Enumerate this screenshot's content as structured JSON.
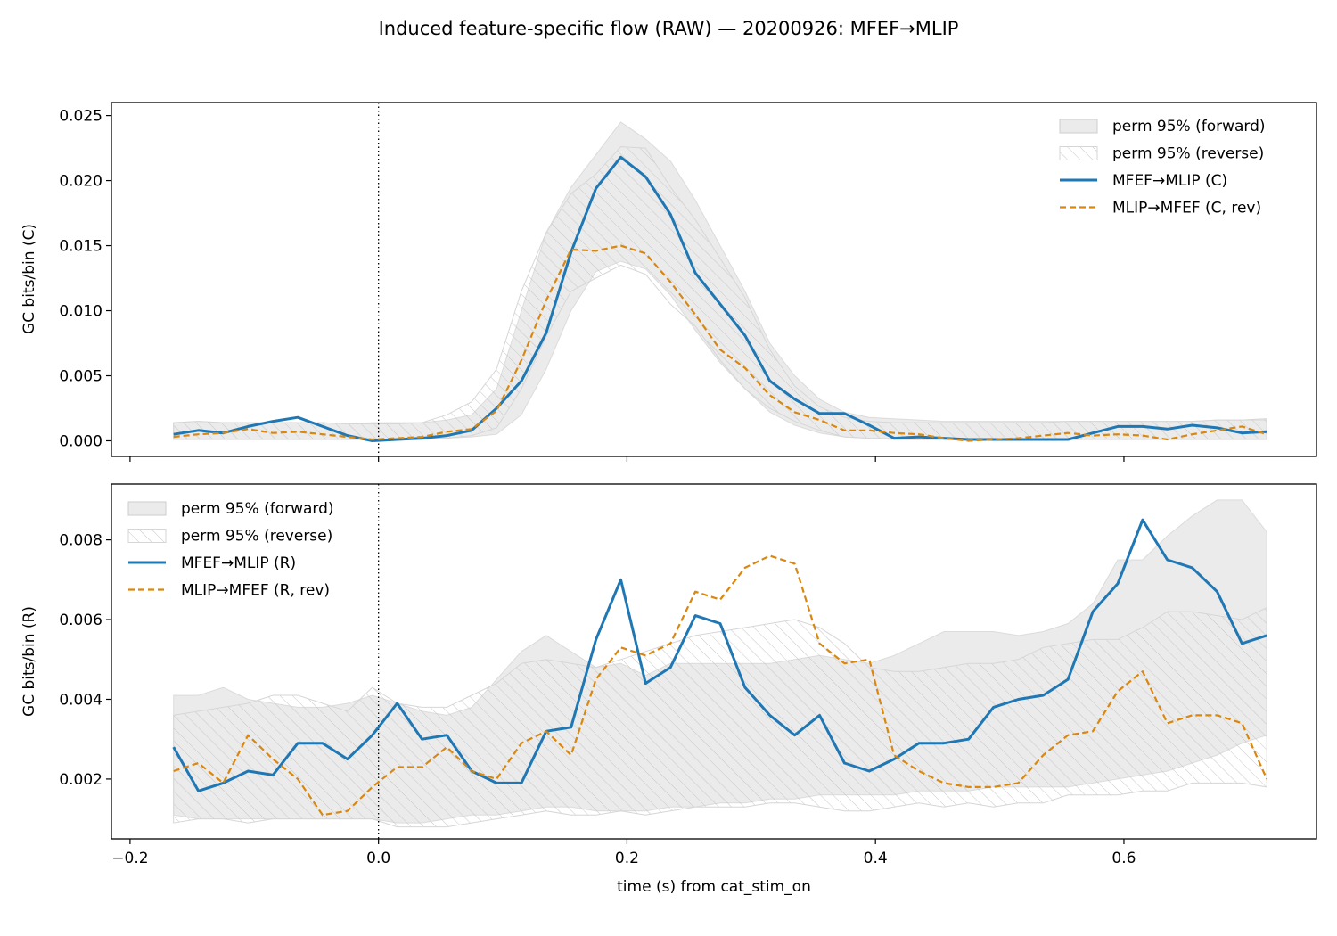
{
  "figure": {
    "title": "Induced feature-specific flow (RAW) — 20200926: MFEF→MLIP"
  },
  "colors": {
    "forward": "#1f77b4",
    "reverse": "#d9870f",
    "band": "#cccccc",
    "hatch": "#c8c8c8"
  },
  "chart_data": [
    {
      "type": "line",
      "panel": "top",
      "ylabel": "GC bits/bin (C)",
      "xlabel": "",
      "xlim": [
        -0.215,
        0.755
      ],
      "ylim": [
        -0.0012,
        0.026
      ],
      "xticks": [
        -0.2,
        0.0,
        0.2,
        0.4,
        0.6
      ],
      "xticklabels": [
        "",
        "",
        "",
        "",
        ""
      ],
      "yticks": [
        0.0,
        0.005,
        0.01,
        0.015,
        0.02,
        0.025
      ],
      "yticklabels": [
        "0.000",
        "0.005",
        "0.010",
        "0.015",
        "0.020",
        "0.025"
      ],
      "vline_x": 0.0,
      "legend_position": "upper right",
      "legend": [
        {
          "label": "perm 95% (forward)",
          "kind": "fill"
        },
        {
          "label": "perm 95% (reverse)",
          "kind": "hatch"
        },
        {
          "label": "MFEF→MLIP (C)",
          "kind": "solid"
        },
        {
          "label": "MLIP→MFEF (C, rev)",
          "kind": "dashed"
        }
      ],
      "x": [
        -0.165,
        -0.145,
        -0.125,
        -0.105,
        -0.085,
        -0.065,
        -0.045,
        -0.025,
        -0.005,
        0.015,
        0.035,
        0.055,
        0.075,
        0.095,
        0.115,
        0.135,
        0.155,
        0.175,
        0.195,
        0.215,
        0.235,
        0.255,
        0.275,
        0.295,
        0.315,
        0.335,
        0.355,
        0.375,
        0.395,
        0.415,
        0.435,
        0.455,
        0.475,
        0.495,
        0.515,
        0.535,
        0.555,
        0.575,
        0.595,
        0.615,
        0.635,
        0.655,
        0.675,
        0.695,
        0.715
      ],
      "series": [
        {
          "name": "MFEF→MLIP (C)",
          "style": "solid",
          "values": [
            0.0005,
            0.0008,
            0.0006,
            0.0011,
            0.0015,
            0.0018,
            0.0011,
            0.0004,
            0.0,
            0.0001,
            0.0002,
            0.0004,
            0.0008,
            0.0025,
            0.0046,
            0.0083,
            0.0145,
            0.0194,
            0.0218,
            0.0203,
            0.0174,
            0.0129,
            0.0105,
            0.0081,
            0.0046,
            0.0032,
            0.0021,
            0.0021,
            0.0012,
            0.0002,
            0.0003,
            0.0002,
            0.0001,
            0.0001,
            0.0001,
            0.0001,
            0.0001,
            0.0006,
            0.0011,
            0.0011,
            0.0009,
            0.0012,
            0.001,
            0.0006,
            0.0007
          ]
        },
        {
          "name": "MLIP→MFEF (C, rev)",
          "style": "dashed",
          "values": [
            0.0003,
            0.0005,
            0.0006,
            0.0009,
            0.0006,
            0.0007,
            0.0005,
            0.0003,
            0.0001,
            0.0002,
            0.0003,
            0.0007,
            0.0009,
            0.0023,
            0.0062,
            0.0108,
            0.0147,
            0.0146,
            0.015,
            0.0144,
            0.0122,
            0.0097,
            0.007,
            0.0056,
            0.0035,
            0.0022,
            0.0016,
            0.0008,
            0.0008,
            0.0006,
            0.0005,
            0.0002,
            0.0,
            0.0001,
            0.0002,
            0.0004,
            0.0006,
            0.0004,
            0.0005,
            0.0004,
            0.0001,
            0.0005,
            0.0008,
            0.0011,
            0.0005
          ]
        }
      ],
      "bands": {
        "forward": {
          "lower": [
            0.0001,
            0.0001,
            0.0001,
            0.0001,
            0.0001,
            0.0001,
            0.0001,
            0.0001,
            0.0001,
            0.0001,
            0.0002,
            0.0002,
            0.0003,
            0.0005,
            0.002,
            0.0055,
            0.01,
            0.013,
            0.0138,
            0.0132,
            0.0112,
            0.0085,
            0.006,
            0.004,
            0.0022,
            0.0012,
            0.0006,
            0.0003,
            0.0002,
            0.0002,
            0.0002,
            0.0001,
            0.0001,
            0.0001,
            0.0001,
            0.0001,
            0.0001,
            0.0001,
            0.0001,
            0.0001,
            0.0001,
            0.0001,
            0.0001,
            0.0001,
            0.0001
          ],
          "upper": [
            0.0014,
            0.0015,
            0.0014,
            0.0014,
            0.0014,
            0.0014,
            0.0014,
            0.0013,
            0.0014,
            0.0014,
            0.0014,
            0.0016,
            0.002,
            0.004,
            0.01,
            0.016,
            0.0195,
            0.022,
            0.0245,
            0.0232,
            0.0215,
            0.0185,
            0.015,
            0.0115,
            0.0075,
            0.005,
            0.0032,
            0.0022,
            0.0018,
            0.0017,
            0.0016,
            0.0015,
            0.0015,
            0.0015,
            0.0015,
            0.0015,
            0.0015,
            0.0015,
            0.0015,
            0.0015,
            0.0015,
            0.0015,
            0.0016,
            0.0016,
            0.0016
          ]
        },
        "reverse": {
          "lower": [
            0.0001,
            0.0001,
            0.0001,
            0.0001,
            0.0001,
            0.0001,
            0.0001,
            0.0001,
            0.0001,
            0.0001,
            0.0001,
            0.0002,
            0.0004,
            0.001,
            0.004,
            0.008,
            0.0115,
            0.0125,
            0.0135,
            0.0128,
            0.0105,
            0.0088,
            0.0062,
            0.004,
            0.0025,
            0.0015,
            0.0008,
            0.0003,
            0.0002,
            0.0001,
            0.0001,
            0.0001,
            0.0001,
            0.0001,
            0.0001,
            0.0001,
            0.0001,
            0.0001,
            0.0001,
            0.0001,
            0.0001,
            0.0001,
            0.0001,
            0.0001,
            0.0001
          ],
          "upper": [
            0.0014,
            0.0015,
            0.0014,
            0.0014,
            0.0014,
            0.0014,
            0.0014,
            0.0013,
            0.0013,
            0.0013,
            0.0014,
            0.002,
            0.003,
            0.0055,
            0.0115,
            0.016,
            0.019,
            0.0205,
            0.0226,
            0.0225,
            0.0195,
            0.017,
            0.014,
            0.011,
            0.007,
            0.0042,
            0.0026,
            0.0018,
            0.0015,
            0.0014,
            0.0014,
            0.0014,
            0.0014,
            0.0014,
            0.0014,
            0.0014,
            0.0015,
            0.0015,
            0.0015,
            0.0015,
            0.0015,
            0.0015,
            0.0016,
            0.0016,
            0.0017
          ]
        }
      }
    },
    {
      "type": "line",
      "panel": "bottom",
      "ylabel": "GC bits/bin (R)",
      "xlabel": "time (s) from cat_stim_on",
      "xlim": [
        -0.215,
        0.755
      ],
      "ylim": [
        0.0005,
        0.0094
      ],
      "xticks": [
        -0.2,
        0.0,
        0.2,
        0.4,
        0.6
      ],
      "xticklabels": [
        "−0.2",
        "0.0",
        "0.2",
        "0.4",
        "0.6"
      ],
      "yticks": [
        0.002,
        0.004,
        0.006,
        0.008
      ],
      "yticklabels": [
        "0.002",
        "0.004",
        "0.006",
        "0.008"
      ],
      "vline_x": 0.0,
      "legend_position": "upper left",
      "legend": [
        {
          "label": "perm 95% (forward)",
          "kind": "fill"
        },
        {
          "label": "perm 95% (reverse)",
          "kind": "hatch"
        },
        {
          "label": "MFEF→MLIP (R)",
          "kind": "solid"
        },
        {
          "label": "MLIP→MFEF (R, rev)",
          "kind": "dashed"
        }
      ],
      "x": [
        -0.165,
        -0.145,
        -0.125,
        -0.105,
        -0.085,
        -0.065,
        -0.045,
        -0.025,
        -0.005,
        0.015,
        0.035,
        0.055,
        0.075,
        0.095,
        0.115,
        0.135,
        0.155,
        0.175,
        0.195,
        0.215,
        0.235,
        0.255,
        0.275,
        0.295,
        0.315,
        0.335,
        0.355,
        0.375,
        0.395,
        0.415,
        0.435,
        0.455,
        0.475,
        0.495,
        0.515,
        0.535,
        0.555,
        0.575,
        0.595,
        0.615,
        0.635,
        0.655,
        0.675,
        0.695,
        0.715
      ],
      "series": [
        {
          "name": "MFEF→MLIP (R)",
          "style": "solid",
          "values": [
            0.0028,
            0.0017,
            0.0019,
            0.0022,
            0.0021,
            0.0029,
            0.0029,
            0.0025,
            0.0031,
            0.0039,
            0.003,
            0.0031,
            0.0022,
            0.0019,
            0.0019,
            0.0032,
            0.0033,
            0.0055,
            0.007,
            0.0044,
            0.0048,
            0.0061,
            0.0059,
            0.0043,
            0.0036,
            0.0031,
            0.0036,
            0.0024,
            0.0022,
            0.0025,
            0.0029,
            0.0029,
            0.003,
            0.0038,
            0.004,
            0.0041,
            0.0045,
            0.0062,
            0.0069,
            0.0085,
            0.0075,
            0.0073,
            0.0067,
            0.0054,
            0.0056
          ]
        },
        {
          "name": "MLIP→MFEF (R, rev)",
          "style": "dashed",
          "values": [
            0.0022,
            0.0024,
            0.0019,
            0.0031,
            0.0025,
            0.002,
            0.0011,
            0.0012,
            0.0018,
            0.0023,
            0.0023,
            0.0028,
            0.0022,
            0.002,
            0.0029,
            0.0032,
            0.0026,
            0.0045,
            0.0053,
            0.0051,
            0.0054,
            0.0067,
            0.0065,
            0.0073,
            0.0076,
            0.0074,
            0.0054,
            0.0049,
            0.005,
            0.0026,
            0.0022,
            0.0019,
            0.0018,
            0.0018,
            0.0019,
            0.0026,
            0.0031,
            0.0032,
            0.0042,
            0.0047,
            0.0034,
            0.0036,
            0.0036,
            0.0034,
            0.002
          ]
        }
      ],
      "bands": {
        "forward": {
          "lower": [
            0.0011,
            0.001,
            0.001,
            0.001,
            0.001,
            0.001,
            0.001,
            0.001,
            0.001,
            0.0009,
            0.0009,
            0.001,
            0.0011,
            0.0011,
            0.0012,
            0.0013,
            0.0013,
            0.0012,
            0.0012,
            0.0012,
            0.0013,
            0.0013,
            0.0014,
            0.0014,
            0.0015,
            0.0015,
            0.0016,
            0.0016,
            0.0016,
            0.0016,
            0.0017,
            0.0017,
            0.0017,
            0.0018,
            0.0018,
            0.0018,
            0.0018,
            0.0019,
            0.002,
            0.0021,
            0.0022,
            0.0024,
            0.0026,
            0.0029,
            0.0031
          ],
          "upper": [
            0.0041,
            0.0041,
            0.0043,
            0.004,
            0.0039,
            0.0038,
            0.0038,
            0.0039,
            0.0041,
            0.0039,
            0.0037,
            0.0036,
            0.0038,
            0.0045,
            0.0052,
            0.0056,
            0.0052,
            0.0048,
            0.0049,
            0.0046,
            0.0049,
            0.0049,
            0.0049,
            0.0049,
            0.0049,
            0.005,
            0.0051,
            0.005,
            0.0049,
            0.0051,
            0.0054,
            0.0057,
            0.0057,
            0.0057,
            0.0056,
            0.0057,
            0.0059,
            0.0064,
            0.0075,
            0.0075,
            0.0081,
            0.0086,
            0.009,
            0.009,
            0.0082
          ]
        },
        "reverse": {
          "lower": [
            0.0009,
            0.001,
            0.001,
            0.0009,
            0.001,
            0.001,
            0.001,
            0.001,
            0.001,
            0.0008,
            0.0008,
            0.0008,
            0.0009,
            0.001,
            0.0011,
            0.0012,
            0.0011,
            0.0011,
            0.0012,
            0.0011,
            0.0012,
            0.0013,
            0.0013,
            0.0013,
            0.0014,
            0.0014,
            0.0013,
            0.0012,
            0.0012,
            0.0013,
            0.0014,
            0.0013,
            0.0014,
            0.0013,
            0.0014,
            0.0014,
            0.0016,
            0.0016,
            0.0016,
            0.0017,
            0.0017,
            0.0019,
            0.0019,
            0.0019,
            0.0018
          ],
          "upper": [
            0.0036,
            0.0037,
            0.0038,
            0.0039,
            0.0041,
            0.0041,
            0.0039,
            0.0037,
            0.0043,
            0.0039,
            0.0038,
            0.0038,
            0.0041,
            0.0044,
            0.0049,
            0.005,
            0.0049,
            0.0048,
            0.005,
            0.0052,
            0.0054,
            0.0056,
            0.0057,
            0.0058,
            0.0059,
            0.006,
            0.0058,
            0.0054,
            0.0048,
            0.0047,
            0.0047,
            0.0048,
            0.0049,
            0.0049,
            0.005,
            0.0053,
            0.0054,
            0.0055,
            0.0055,
            0.0058,
            0.0062,
            0.0062,
            0.0061,
            0.006,
            0.0063
          ]
        }
      }
    }
  ]
}
